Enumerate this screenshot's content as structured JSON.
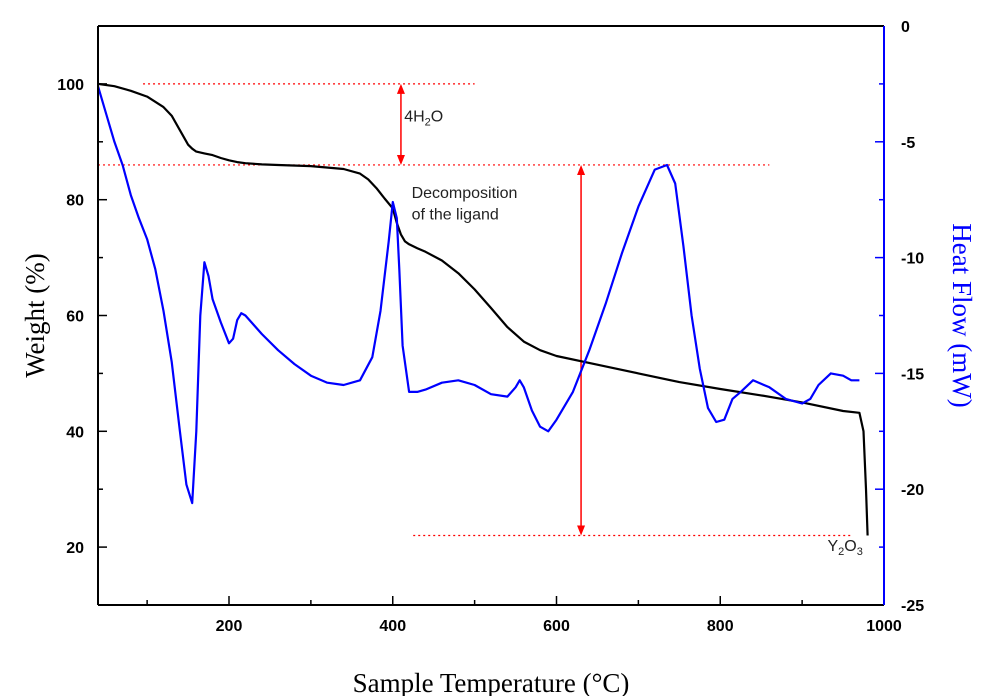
{
  "chart_data": {
    "type": "line",
    "xlabel": "Sample Temperature (°C)",
    "ylabel": "Weight (%)",
    "y2label": "Heat Flow (mW)",
    "xlim": [
      40,
      1000
    ],
    "ylim": [
      10,
      110
    ],
    "y2lim": [
      -25,
      0
    ],
    "x_ticks": [
      200,
      400,
      600,
      800,
      1000
    ],
    "y_ticks": [
      20,
      40,
      60,
      80,
      100
    ],
    "y2_ticks": [
      -25,
      -20,
      -15,
      -10,
      -5,
      0
    ],
    "grid": false,
    "colors": {
      "weight": "#000000",
      "heat_flow": "#0000ff",
      "axis_right": "#0000ff",
      "annotation": "#ff0000"
    },
    "series": [
      {
        "axis": "left",
        "x": [
          40,
          60,
          80,
          100,
          120,
          130,
          140,
          150,
          155,
          160,
          170,
          180,
          190,
          200,
          210,
          220,
          240,
          260,
          300,
          340,
          360,
          370,
          380,
          390,
          400,
          405,
          410,
          415,
          420,
          430,
          440,
          460,
          480,
          500,
          520,
          540,
          560,
          580,
          600,
          650,
          700,
          750,
          800,
          850,
          900,
          950,
          970,
          975,
          978,
          980
        ],
        "y": [
          100,
          99.6,
          98.8,
          97.8,
          96,
          94.5,
          92,
          89.5,
          88.8,
          88.3,
          88,
          87.7,
          87.2,
          86.8,
          86.5,
          86.3,
          86.1,
          86,
          85.8,
          85.3,
          84.5,
          83.5,
          82,
          80.2,
          78.5,
          76,
          74,
          72.8,
          72.3,
          71.6,
          71,
          69.5,
          67.3,
          64.5,
          61.3,
          58,
          55.5,
          54,
          53,
          51.5,
          50,
          48.5,
          47.3,
          46.2,
          45,
          43.5,
          43.2,
          40,
          30,
          22
        ]
      },
      {
        "axis": "right",
        "x": [
          40,
          50,
          60,
          70,
          80,
          90,
          100,
          110,
          120,
          130,
          140,
          148,
          155,
          160,
          165,
          170,
          175,
          180,
          190,
          200,
          205,
          210,
          215,
          220,
          240,
          260,
          280,
          300,
          320,
          340,
          360,
          375,
          385,
          395,
          400,
          405,
          408,
          412,
          420,
          430,
          440,
          460,
          480,
          500,
          520,
          540,
          550,
          555,
          560,
          570,
          580,
          590,
          600,
          620,
          640,
          660,
          680,
          700,
          720,
          735,
          745,
          755,
          765,
          775,
          785,
          795,
          805,
          815,
          825,
          840,
          860,
          880,
          900,
          910,
          920,
          935,
          950,
          960,
          970
        ],
        "y": [
          -2.6,
          -3.8,
          -5,
          -6,
          -7.3,
          -8.3,
          -9.2,
          -10.5,
          -12.3,
          -14.5,
          -17.5,
          -19.8,
          -20.6,
          -17.5,
          -12.5,
          -10.2,
          -10.8,
          -11.8,
          -12.8,
          -13.7,
          -13.5,
          -12.7,
          -12.4,
          -12.5,
          -13.3,
          -14,
          -14.6,
          -15.1,
          -15.4,
          -15.5,
          -15.3,
          -14.3,
          -12.3,
          -9.3,
          -7.6,
          -8.3,
          -10.5,
          -13.8,
          -15.8,
          -15.8,
          -15.7,
          -15.4,
          -15.3,
          -15.5,
          -15.9,
          -16,
          -15.6,
          -15.3,
          -15.6,
          -16.6,
          -17.3,
          -17.5,
          -17,
          -15.8,
          -14,
          -12,
          -9.8,
          -7.8,
          -6.2,
          -6.0,
          -6.8,
          -9.5,
          -12.5,
          -14.8,
          -16.5,
          -17.1,
          -17,
          -16.1,
          -15.8,
          -15.3,
          -15.6,
          -16.1,
          -16.3,
          -16.1,
          -15.5,
          -15,
          -15.1,
          -15.3,
          -15.3
        ]
      }
    ],
    "annotations": {
      "water_loss": "4H2O",
      "decomposition_line1": "Decomposition",
      "decomposition_line2": "of the ligand",
      "residue": "Y2O3"
    }
  }
}
